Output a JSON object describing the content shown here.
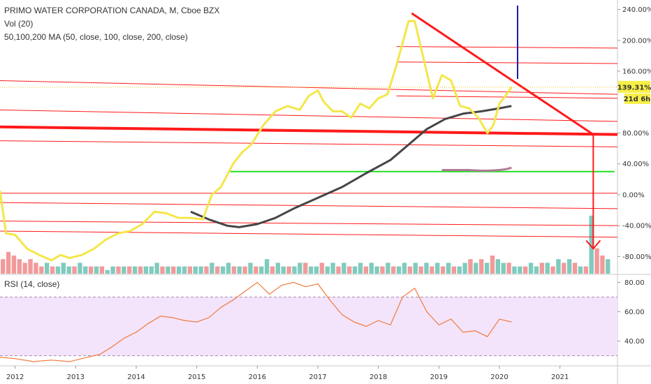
{
  "legend": {
    "title": "PRIMO WATER CORPORATION CANADA, M, Cboe BZX",
    "volume": "Vol (20)",
    "ma": "50,100,200 MA (50, close, 100, close, 200, close)",
    "rsi": "RSI (14, close)"
  },
  "price_badge": {
    "value": "139.31%",
    "countdown": "21d 6h",
    "color": "#f7ef47"
  },
  "colors": {
    "price": "#f4e64a",
    "ma": "#454545",
    "support": "#ff1a1a",
    "green": "#22dd22",
    "blue": "#1a1aa8",
    "rsi": "#f07a3a",
    "rsi_band": "#f3e4fb",
    "vol_up": "#7fcbbe",
    "vol_down": "#f19a9a"
  },
  "chart_data": [
    {
      "type": "line",
      "x_ticks": [
        "2012",
        "2013",
        "2014",
        "2015",
        "2016",
        "2017",
        "2018",
        "2019",
        "2020",
        "2021"
      ],
      "y_ticks": [
        "240.00%",
        "200.00%",
        "160.00%",
        "80.00%",
        "40.00%",
        "0.00%",
        "-40.00%",
        "-80.00%"
      ],
      "ylim": [
        -95,
        245
      ],
      "series": [
        {
          "role": "price",
          "x": [
            2011.75,
            2011.85,
            2012.0,
            2012.2,
            2012.4,
            2012.6,
            2012.75,
            2012.9,
            2013.1,
            2013.3,
            2013.5,
            2013.7,
            2013.9,
            2014.1,
            2014.3,
            2014.5,
            2014.7,
            2014.9,
            2015.1,
            2015.25,
            2015.4,
            2015.6,
            2015.75,
            2015.9,
            2016.1,
            2016.3,
            2016.5,
            2016.7,
            2016.85,
            2017.0,
            2017.1,
            2017.25,
            2017.4,
            2017.55,
            2017.7,
            2017.85,
            2018.0,
            2018.15,
            2018.3,
            2018.5,
            2018.6,
            2018.75,
            2018.9,
            2019.05,
            2019.2,
            2019.35,
            2019.5,
            2019.65,
            2019.8,
            2019.9,
            2020.0,
            2020.1,
            2020.2
          ],
          "y": [
            5,
            -50,
            -52,
            -70,
            -78,
            -85,
            -78,
            -82,
            -78,
            -70,
            -58,
            -50,
            -47,
            -38,
            -22,
            -24,
            -30,
            -30,
            -32,
            0,
            10,
            40,
            55,
            65,
            90,
            108,
            115,
            110,
            128,
            135,
            120,
            108,
            108,
            100,
            118,
            112,
            125,
            130,
            168,
            225,
            225,
            175,
            125,
            155,
            148,
            115,
            112,
            100,
            80,
            90,
            118,
            128,
            139.31
          ]
        },
        {
          "role": "ma",
          "x": [
            2014.9,
            2015.2,
            2015.5,
            2015.7,
            2016.0,
            2016.3,
            2016.6,
            2017.0,
            2017.4,
            2017.8,
            2018.2,
            2018.5,
            2018.8,
            2019.1,
            2019.4,
            2019.7,
            2020.0,
            2020.2
          ],
          "y": [
            -22,
            -32,
            -40,
            -42,
            -38,
            -30,
            -18,
            -4,
            10,
            28,
            45,
            65,
            85,
            98,
            105,
            108,
            112,
            115
          ]
        }
      ]
    },
    {
      "type": "bar",
      "role": "volume",
      "values": [
        4,
        6,
        5,
        4,
        3,
        4,
        3,
        2,
        3,
        2,
        2,
        3,
        2,
        2,
        3,
        2,
        2,
        2,
        2,
        1,
        2,
        2,
        2,
        2,
        2,
        2,
        2,
        2,
        3,
        2,
        2,
        2,
        2,
        2,
        2,
        2,
        2,
        2,
        3,
        2,
        2,
        3,
        2,
        2,
        2,
        3,
        2,
        2,
        4,
        2,
        3,
        2,
        2,
        2,
        3,
        3,
        2,
        2,
        3,
        2,
        3,
        2,
        3,
        2,
        2,
        3,
        2,
        3,
        2,
        2,
        3,
        2,
        2,
        3,
        2,
        3,
        2,
        3,
        2,
        3,
        2,
        3,
        2,
        2,
        3,
        4,
        3,
        4,
        3,
        5,
        4,
        3,
        3,
        2,
        2,
        2,
        3,
        2,
        3,
        3,
        2,
        4,
        3,
        4,
        3,
        2,
        2,
        16,
        7,
        5,
        4
      ],
      "directions": [
        "d",
        "d",
        "d",
        "d",
        "d",
        "d",
        "d",
        "d",
        "u",
        "d",
        "u",
        "u",
        "u",
        "d",
        "u",
        "u",
        "d",
        "u",
        "d",
        "u",
        "u",
        "d",
        "u",
        "d",
        "u",
        "d",
        "u",
        "u",
        "u",
        "d",
        "u",
        "d",
        "u",
        "u",
        "d",
        "u",
        "u",
        "d",
        "u",
        "d",
        "u",
        "u",
        "d",
        "u",
        "d",
        "u",
        "d",
        "u",
        "u",
        "d",
        "u",
        "u",
        "d",
        "u",
        "u",
        "d",
        "u",
        "u",
        "d",
        "u",
        "u",
        "d",
        "u",
        "d",
        "u",
        "u",
        "d",
        "u",
        "u",
        "d",
        "u",
        "d",
        "u",
        "u",
        "d",
        "u",
        "d",
        "u",
        "d",
        "u",
        "d",
        "u",
        "d",
        "u",
        "u",
        "d",
        "u",
        "d",
        "u",
        "d",
        "u",
        "u",
        "d",
        "u",
        "u",
        "d",
        "u",
        "u",
        "d",
        "u",
        "d",
        "u",
        "d",
        "u",
        "d",
        "u",
        "d",
        "u",
        "d",
        "d",
        "u"
      ]
    },
    {
      "type": "line",
      "role": "rsi",
      "y_ticks": [
        "80.00",
        "60.00",
        "40.00"
      ],
      "ylim": [
        25,
        85
      ],
      "bands": [
        30,
        70
      ],
      "x": [
        2011.75,
        2012.0,
        2012.3,
        2012.6,
        2012.9,
        2013.2,
        2013.4,
        2013.6,
        2013.8,
        2014.0,
        2014.2,
        2014.4,
        2014.6,
        2014.8,
        2015.0,
        2015.2,
        2015.4,
        2015.6,
        2015.8,
        2016.0,
        2016.2,
        2016.4,
        2016.6,
        2016.8,
        2017.0,
        2017.2,
        2017.4,
        2017.6,
        2017.8,
        2018.0,
        2018.2,
        2018.4,
        2018.6,
        2018.8,
        2019.0,
        2019.2,
        2019.4,
        2019.6,
        2019.8,
        2020.0,
        2020.2
      ],
      "y": [
        29,
        28,
        26,
        27,
        26,
        29,
        31,
        36,
        42,
        46,
        52,
        57,
        56,
        54,
        53,
        56,
        63,
        68,
        74,
        80,
        72,
        78,
        80,
        77,
        79,
        68,
        58,
        53,
        50,
        54,
        51,
        70,
        76,
        60,
        51,
        55,
        46,
        47,
        43,
        55,
        53
      ]
    }
  ],
  "drawing": {
    "horizontal_lines": [
      {
        "from_x": 2011.6,
        "y_from": 148,
        "y_to": 130
      },
      {
        "from_x": 2011.6,
        "y_from": 110,
        "y_to": 95
      },
      {
        "from_x": 2011.6,
        "y_from": 70,
        "y_to": 62
      },
      {
        "from_x": 2011.6,
        "y_from": 2,
        "y_to": 2
      },
      {
        "from_x": 2011.6,
        "y_from": -10,
        "y_to": -18
      },
      {
        "from_x": 2011.6,
        "y_from": -34,
        "y_to": -40
      },
      {
        "from_x": 2011.6,
        "y_from": -47,
        "y_to": -55
      },
      {
        "from_x": 2018.3,
        "y_from": 192,
        "y_to": 190
      },
      {
        "from_x": 2018.3,
        "y_from": 172,
        "y_to": 170
      },
      {
        "from_x": 2018.3,
        "y_from": 128,
        "y_to": 125
      }
    ],
    "main_support": {
      "from_x": 2011.6,
      "y_from": 88,
      "y_to": 78
    },
    "green_line": {
      "from_x": 2015.55,
      "to_x": 2021.9,
      "y": 30
    },
    "trend_down": {
      "x_from": 2018.55,
      "y_from": 235,
      "x_to": 2021.55,
      "y_to": 78
    },
    "arrow_down": {
      "x": 2021.55,
      "y_from": 78,
      "y_to": -70
    },
    "blue_line": {
      "x": 2020.3,
      "y_from": 245,
      "y_to": 150
    }
  }
}
